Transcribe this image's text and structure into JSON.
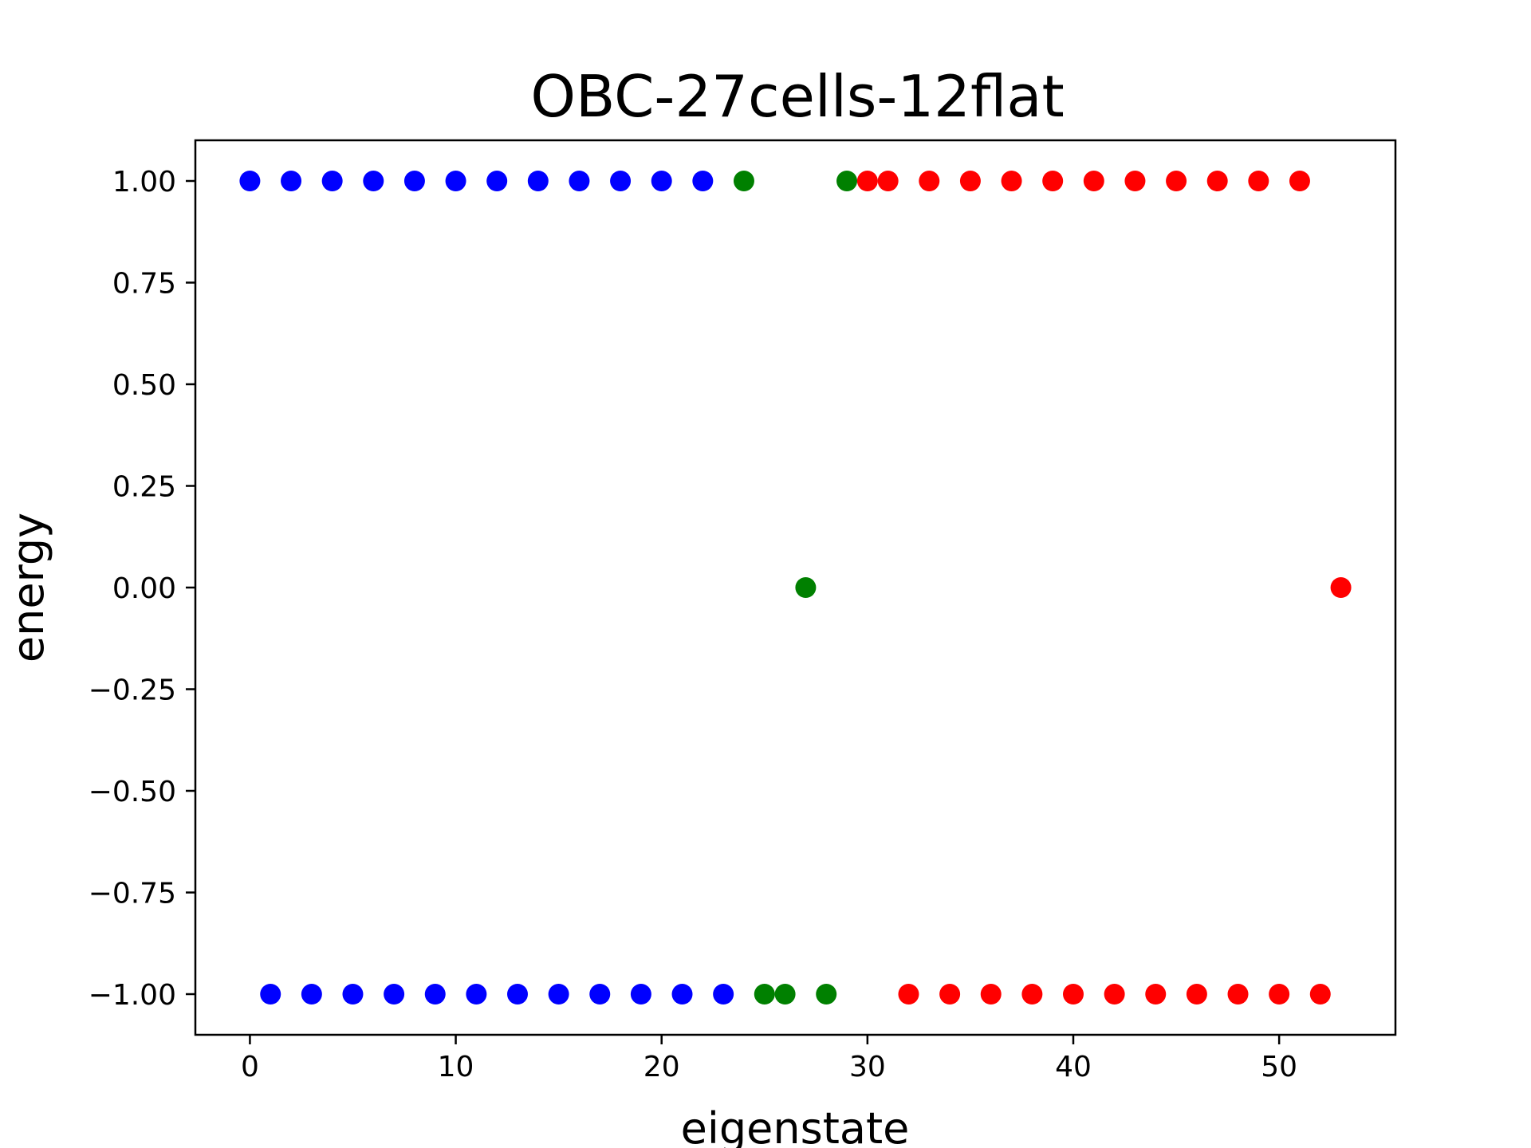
{
  "chart_data": {
    "type": "scatter",
    "title": "OBC-27cells-12flat",
    "xlabel": "eigenstate",
    "ylabel": "energy",
    "xlim": [
      -2.65,
      55.65
    ],
    "ylim": [
      -1.1,
      1.1
    ],
    "xticks": [
      0,
      10,
      20,
      30,
      40,
      50
    ],
    "xtick_labels": [
      "0",
      "10",
      "20",
      "30",
      "40",
      "50"
    ],
    "yticks": [
      1.0,
      0.75,
      0.5,
      0.25,
      0.0,
      -0.25,
      -0.5,
      -0.75,
      -1.0
    ],
    "ytick_labels": [
      "1.00",
      "0.75",
      "0.50",
      "0.25",
      "0.00",
      "−0.25",
      "−0.50",
      "−0.75",
      "−1.00"
    ],
    "grid": false,
    "series": [
      {
        "color": "#0000ff",
        "x": [
          0,
          1,
          2,
          3,
          4,
          5,
          6,
          7,
          8,
          9,
          10,
          11,
          12,
          13,
          14,
          15,
          16,
          17,
          18,
          19,
          20,
          21,
          22,
          23
        ],
        "y": [
          1,
          -1,
          1,
          -1,
          1,
          -1,
          1,
          -1,
          1,
          -1,
          1,
          -1,
          1,
          -1,
          1,
          -1,
          1,
          -1,
          1,
          -1,
          1,
          -1,
          1,
          -1
        ]
      },
      {
        "color": "#008000",
        "x": [
          24,
          25,
          26,
          27,
          28,
          29
        ],
        "y": [
          1,
          -1,
          -1,
          0,
          -1,
          1
        ]
      },
      {
        "color": "#ff0000",
        "x": [
          30,
          31,
          32,
          33,
          34,
          35,
          36,
          37,
          38,
          39,
          40,
          41,
          42,
          43,
          44,
          45,
          46,
          47,
          48,
          49,
          50,
          51,
          52,
          53
        ],
        "y": [
          1,
          1,
          -1,
          1,
          -1,
          1,
          -1,
          1,
          -1,
          1,
          -1,
          1,
          -1,
          1,
          -1,
          1,
          -1,
          1,
          -1,
          1,
          -1,
          1,
          -1,
          0
        ]
      }
    ]
  }
}
